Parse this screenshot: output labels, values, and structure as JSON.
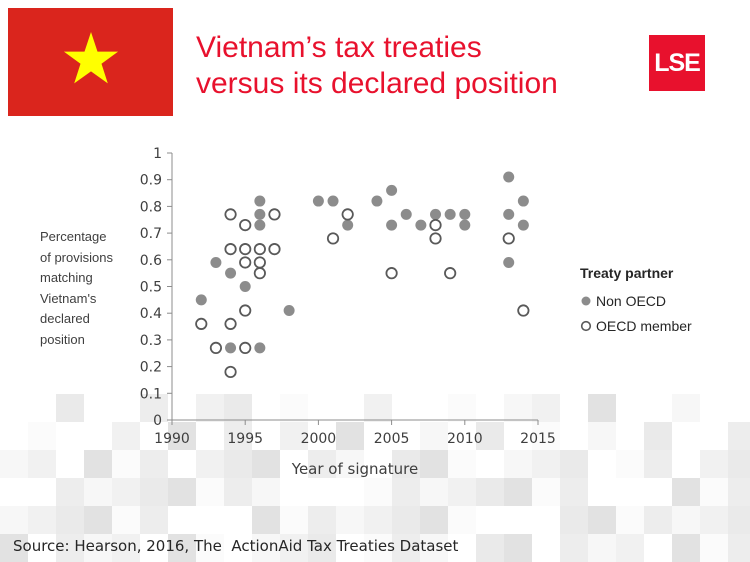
{
  "slide": {
    "title_line1": "Vietnam’s tax treaties",
    "title_line2": "versus its declared position",
    "logo_text": "LSE",
    "source": "Source: Hearson, 2016, The  ActionAid Tax Treaties Dataset"
  },
  "colors": {
    "title": "#e8112d",
    "flag_red": "#da251d",
    "flag_star": "#ffff00",
    "logo_bg": "#e8112d",
    "non_oecd": "#8c8c8c",
    "oecd": "#595959",
    "axis": "#8c8c8c"
  },
  "legend": {
    "title": "Treaty partner",
    "non_oecd": "Non OECD",
    "oecd": "OECD member"
  },
  "chart_data": {
    "type": "scatter",
    "xlabel": "Year of signature",
    "ylabel_lines": [
      "Percentage",
      "of provisions",
      "matching",
      "Vietnam's",
      "declared",
      "position"
    ],
    "xlim": [
      1990,
      2015
    ],
    "ylim": [
      0,
      1
    ],
    "x_ticks": [
      1990,
      1995,
      2000,
      2005,
      2010,
      2015
    ],
    "y_ticks": [
      0,
      0.1,
      0.2,
      0.3,
      0.4,
      0.5,
      0.6,
      0.7,
      0.8,
      0.9,
      1
    ],
    "y_tick_labels": [
      "0",
      "0.1",
      "0.2",
      "0.3",
      "0.4",
      "0.5",
      "0.6",
      "0.7",
      "0.8",
      "0.9",
      "1"
    ],
    "grid": false,
    "legend_position": "right",
    "series": [
      {
        "name": "Non OECD",
        "marker": "filled",
        "points": [
          [
            1992,
            0.45
          ],
          [
            1993,
            0.59
          ],
          [
            1994,
            0.55
          ],
          [
            1994,
            0.27
          ],
          [
            1995,
            0.64
          ],
          [
            1995,
            0.59
          ],
          [
            1995,
            0.5
          ],
          [
            1995,
            0.27
          ],
          [
            1996,
            0.82
          ],
          [
            1996,
            0.77
          ],
          [
            1996,
            0.73
          ],
          [
            1996,
            0.64
          ],
          [
            1996,
            0.27
          ],
          [
            1997,
            0.77
          ],
          [
            1997,
            0.64
          ],
          [
            1998,
            0.41
          ],
          [
            2000,
            0.82
          ],
          [
            2001,
            0.82
          ],
          [
            2002,
            0.73
          ],
          [
            2004,
            0.82
          ],
          [
            2005,
            0.86
          ],
          [
            2005,
            0.73
          ],
          [
            2006,
            0.77
          ],
          [
            2007,
            0.73
          ],
          [
            2008,
            0.77
          ],
          [
            2008,
            0.73
          ],
          [
            2009,
            0.77
          ],
          [
            2010,
            0.77
          ],
          [
            2010,
            0.73
          ],
          [
            2013,
            0.91
          ],
          [
            2013,
            0.77
          ],
          [
            2013,
            0.59
          ],
          [
            2014,
            0.82
          ],
          [
            2014,
            0.73
          ]
        ]
      },
      {
        "name": "OECD member",
        "marker": "open",
        "points": [
          [
            1992,
            0.36
          ],
          [
            1993,
            0.27
          ],
          [
            1994,
            0.77
          ],
          [
            1994,
            0.64
          ],
          [
            1994,
            0.36
          ],
          [
            1994,
            0.18
          ],
          [
            1995,
            0.73
          ],
          [
            1995,
            0.64
          ],
          [
            1995,
            0.59
          ],
          [
            1995,
            0.41
          ],
          [
            1995,
            0.27
          ],
          [
            1996,
            0.64
          ],
          [
            1996,
            0.59
          ],
          [
            1996,
            0.55
          ],
          [
            1997,
            0.77
          ],
          [
            1997,
            0.64
          ],
          [
            2001,
            0.68
          ],
          [
            2002,
            0.77
          ],
          [
            2005,
            0.55
          ],
          [
            2008,
            0.73
          ],
          [
            2008,
            0.68
          ],
          [
            2009,
            0.55
          ],
          [
            2013,
            0.68
          ],
          [
            2014,
            0.41
          ]
        ]
      }
    ]
  }
}
